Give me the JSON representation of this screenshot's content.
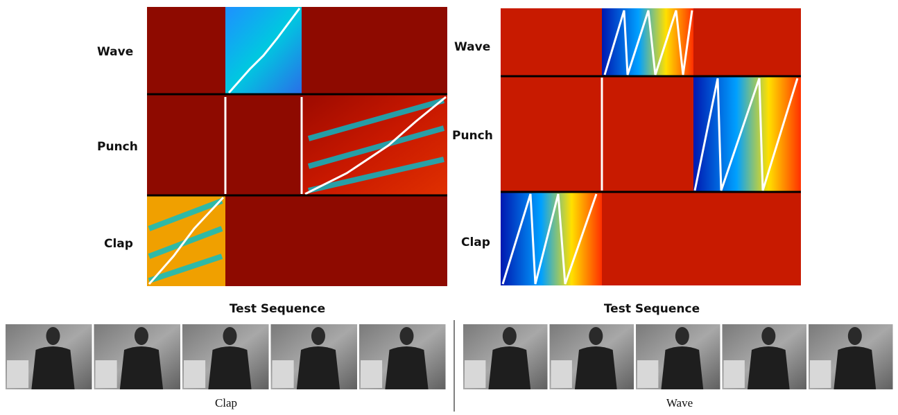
{
  "left_panel": {
    "row_labels": [
      "Wave",
      "Punch",
      "Clap"
    ],
    "x_label": "Test Sequence"
  },
  "right_panel": {
    "row_labels": [
      "Wave",
      "Punch",
      "Clap"
    ],
    "x_label": "Test Sequence"
  },
  "captions": [
    "Clap",
    "Wave"
  ]
}
